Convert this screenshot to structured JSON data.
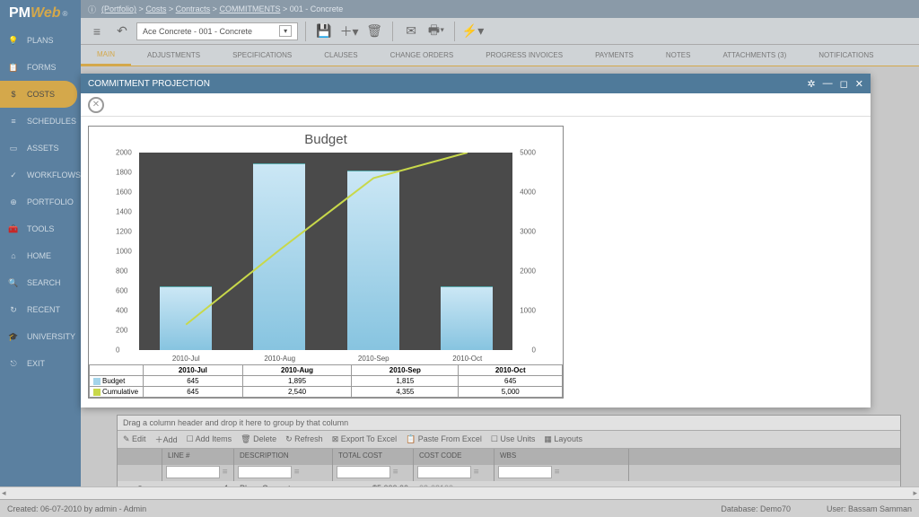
{
  "logo": {
    "pm": "PM",
    "web": "Web",
    "reg": "®"
  },
  "breadcrumb": {
    "info": "ⓘ",
    "portfolio": "(Portfolio)",
    "sep": ">",
    "p2": "Costs",
    "p3": "Contracts",
    "p4": "COMMITMENTS",
    "p5": "001 - Concrete"
  },
  "selector": {
    "value": "Ace Concrete - 001 - Concrete"
  },
  "sidebar": {
    "items": [
      {
        "icon": "💡",
        "label": "PLANS"
      },
      {
        "icon": "📋",
        "label": "FORMS"
      },
      {
        "icon": "$",
        "label": "COSTS",
        "active": true
      },
      {
        "icon": "≡",
        "label": "SCHEDULES"
      },
      {
        "icon": "▭",
        "label": "ASSETS"
      },
      {
        "icon": "✓",
        "label": "WORKFLOWS"
      },
      {
        "icon": "⊕",
        "label": "PORTFOLIO"
      },
      {
        "icon": "🧰",
        "label": "TOOLS"
      },
      {
        "icon": "⌂",
        "label": "HOME"
      },
      {
        "icon": "🔍",
        "label": "SEARCH"
      },
      {
        "icon": "↻",
        "label": "RECENT"
      },
      {
        "icon": "🎓",
        "label": "UNIVERSITY"
      },
      {
        "icon": "⎋",
        "label": "EXIT"
      }
    ]
  },
  "tabs": {
    "items": [
      "MAIN",
      "ADJUSTMENTS",
      "SPECIFICATIONS",
      "CLAUSES",
      "CHANGE ORDERS",
      "PROGRESS INVOICES",
      "PAYMENTS",
      "NOTES",
      "ATTACHMENTS (3)",
      "NOTIFICATIONS"
    ]
  },
  "modal": {
    "title": "COMMITMENT PROJECTION"
  },
  "chart": {
    "title": "Budget",
    "categories": [
      "2010-Jul",
      "2010-Aug",
      "2010-Sep",
      "2010-Oct"
    ],
    "budget": [
      645,
      1895,
      1815,
      645
    ],
    "cumulative": [
      645,
      2540,
      4355,
      5000
    ],
    "y1_max": 2000,
    "y1_step": 200,
    "y2_max": 5000,
    "y2_step": 1000,
    "bar_color": "#a3d4ea",
    "line_color": "#c8d84a",
    "plot_bg": "#4a4a4a",
    "rows": [
      {
        "label": "Budget",
        "sw": "#a3d4ea",
        "vals": [
          "645",
          "1,895",
          "1,815",
          "645"
        ]
      },
      {
        "label": "Cumulative",
        "sw": "#c8d84a",
        "vals": [
          "645",
          "2,540",
          "4,355",
          "5,000"
        ]
      }
    ]
  },
  "grid": {
    "hint": "Drag a column header and drop it here to group by that column",
    "toolbar": [
      "✎ Edit",
      "＋Add",
      "☐ Add Items",
      "🗑 Delete",
      "↻ Refresh",
      "⊠ Export To Excel",
      "📋 Paste From Excel",
      "☐ Use Units",
      "▦ Layouts"
    ],
    "headers": [
      "",
      "LINE #",
      "DESCRIPTION",
      "TOTAL COST",
      "COST CODE",
      "WBS"
    ],
    "row": {
      "expand": "⊕",
      "line": "1",
      "desc": "Place Concrete",
      "cost": "$5,000.00",
      "code": "03-03100",
      "wbs": ""
    }
  },
  "status": {
    "left": "Created: 06-07-2010 by admin - Admin",
    "db": "Database: Demo70",
    "user": "User: Bassam Samman"
  }
}
